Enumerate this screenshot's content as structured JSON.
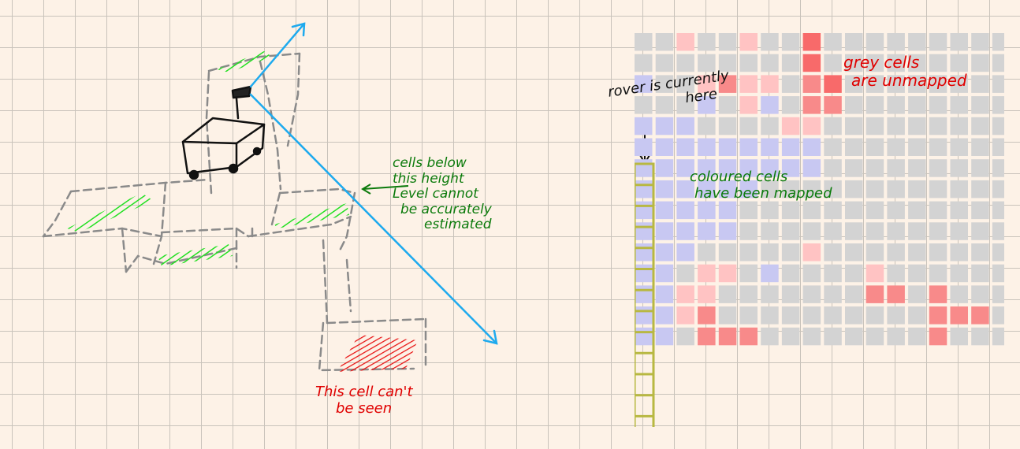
{
  "annotations": {
    "cells_below_height": [
      "cells below",
      "this height",
      "Level cannot",
      "be accurately",
      "estimated"
    ],
    "cell_cant_be_seen": [
      "This cell can't",
      "be seen"
    ],
    "rover_here": [
      "rover is currently",
      "here"
    ],
    "grey_cells": [
      "grey cells",
      "are unmapped"
    ],
    "coloured_cells": [
      "coloured cells",
      "have been mapped"
    ]
  },
  "colors": {
    "background": "#fdf2e7",
    "grid_line": "#c9c3bb",
    "unmapped": "#d3d3d3",
    "low": "#c8c8f2",
    "light_red": "#ffc3c3",
    "mid_red": "#f88a8a",
    "red": "#f86a6a",
    "rover_strip": "#b8b842",
    "green_text": "#0b7a0b",
    "red_text": "#e00000",
    "arrow": "#1eaaee"
  },
  "legend": {
    "0": "unmapped",
    "1": "low",
    "2": "light_red",
    "3": "mid_red",
    "4": "red"
  },
  "height_map": [
    [
      0,
      0,
      2,
      0,
      0,
      2,
      0,
      0,
      4,
      0,
      0,
      0,
      0,
      0,
      0,
      0,
      0,
      0,
      0
    ],
    [
      0,
      0,
      0,
      0,
      0,
      0,
      0,
      0,
      4,
      0,
      0,
      0,
      0,
      0,
      0,
      0,
      0,
      0,
      0
    ],
    [
      1,
      0,
      0,
      2,
      3,
      2,
      2,
      0,
      3,
      4,
      0,
      0,
      0,
      0,
      0,
      0,
      0,
      0,
      0
    ],
    [
      0,
      0,
      0,
      1,
      0,
      2,
      1,
      0,
      3,
      3,
      0,
      0,
      0,
      0,
      0,
      0,
      0,
      0,
      0
    ],
    [
      1,
      1,
      1,
      0,
      0,
      0,
      0,
      2,
      2,
      0,
      0,
      0,
      0,
      0,
      0,
      0,
      0,
      0,
      0
    ],
    [
      1,
      1,
      1,
      1,
      1,
      1,
      1,
      1,
      1,
      0,
      0,
      0,
      0,
      0,
      0,
      0,
      0,
      0,
      0
    ],
    [
      1,
      1,
      1,
      1,
      1,
      1,
      1,
      1,
      1,
      0,
      0,
      0,
      0,
      0,
      0,
      0,
      0,
      0,
      0
    ],
    [
      1,
      1,
      1,
      1,
      1,
      1,
      0,
      0,
      0,
      0,
      0,
      0,
      0,
      0,
      0,
      0,
      0,
      0,
      0
    ],
    [
      1,
      1,
      1,
      1,
      1,
      0,
      0,
      0,
      0,
      0,
      0,
      0,
      0,
      0,
      0,
      0,
      0,
      0,
      0
    ],
    [
      1,
      1,
      1,
      1,
      1,
      0,
      0,
      0,
      0,
      0,
      0,
      0,
      0,
      0,
      0,
      0,
      0,
      0,
      0
    ],
    [
      1,
      1,
      1,
      0,
      0,
      0,
      0,
      0,
      2,
      0,
      0,
      0,
      0,
      0,
      0,
      0,
      0,
      0,
      0
    ],
    [
      1,
      1,
      0,
      2,
      2,
      0,
      1,
      0,
      0,
      0,
      0,
      2,
      0,
      0,
      0,
      0,
      0,
      0,
      0
    ],
    [
      1,
      1,
      2,
      2,
      0,
      0,
      0,
      0,
      0,
      0,
      0,
      3,
      3,
      0,
      3,
      0,
      0,
      0,
      0
    ],
    [
      1,
      1,
      2,
      3,
      0,
      0,
      0,
      0,
      0,
      0,
      0,
      0,
      0,
      0,
      3,
      3,
      3,
      0,
      4
    ],
    [
      1,
      1,
      0,
      3,
      3,
      3,
      0,
      0,
      0,
      0,
      0,
      0,
      0,
      0,
      3,
      0,
      0,
      0,
      0
    ]
  ]
}
